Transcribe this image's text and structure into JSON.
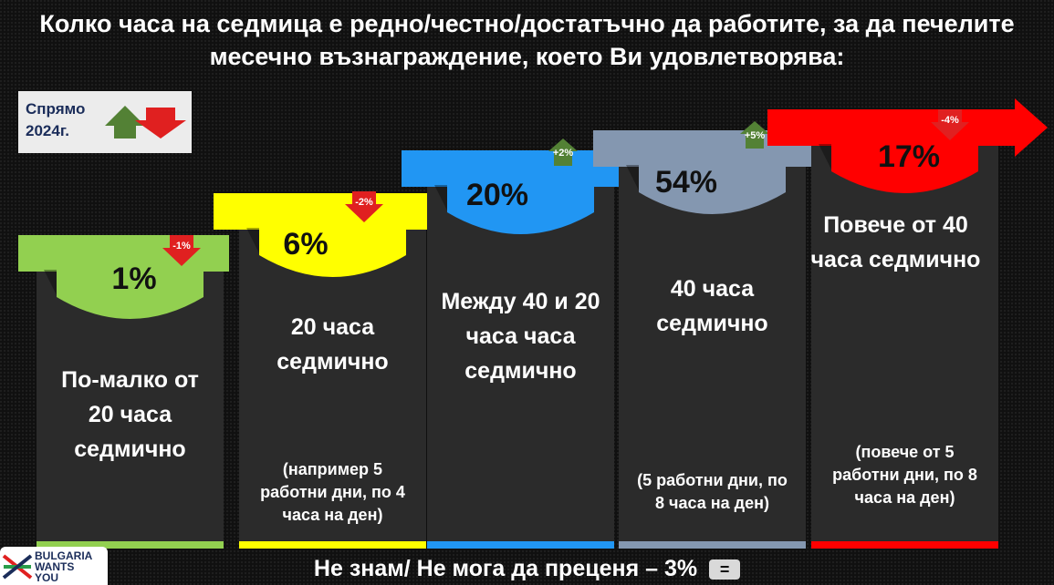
{
  "title": "Колко часа на седмица е редно/честно/достатъчно да работите, за да печелите месечно възнаграждение, което Ви удовлетворява:",
  "legend": {
    "text": "Спрямо 2024г.",
    "up_color": "#538135",
    "down_color": "#e02020"
  },
  "footer": {
    "text": "Не знам/ Не мога да преценя – 3%",
    "badge": "="
  },
  "logo": {
    "text": "BULGARIA\nWANTS\nYOU"
  },
  "chart_data": {
    "type": "bar",
    "categories": [
      "По-малко от 20 часа седмично",
      "20 часа седмично",
      "Между 40 и 20 часа часа седмично",
      "40 часа седмично",
      "Повече от 40 часа седмично"
    ],
    "values": [
      1,
      6,
      20,
      54,
      17
    ],
    "value_labels": [
      "1%",
      "6%",
      "20%",
      "54%",
      "17%"
    ],
    "change_vs_2024": [
      "-1%",
      "-2%",
      "+2%",
      "+5%",
      "-4%"
    ],
    "change_direction": [
      "down",
      "down",
      "up",
      "up",
      "down"
    ],
    "notes": [
      "",
      "(например 5 работни дни, по 4 часа на ден)",
      "",
      "(5 работни дни, по 8 часа на ден)",
      "(повече от 5 работни дни, по 8 часа на ден)"
    ],
    "colors": [
      "#92d050",
      "#ffff00",
      "#2196f3",
      "#8497b0",
      "#ff0000"
    ]
  }
}
